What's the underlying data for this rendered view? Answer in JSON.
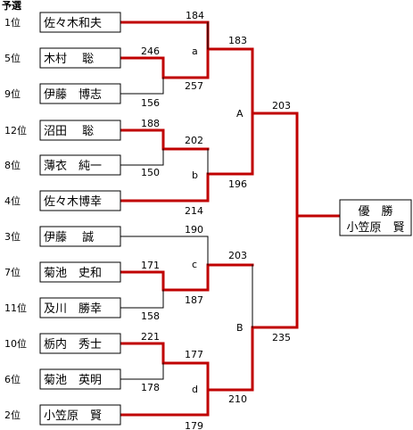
{
  "title": "予選",
  "colors": {
    "winner": "#c00000",
    "loser": "#000000"
  },
  "players": [
    {
      "seed": "1位",
      "name": "佐々木和夫",
      "score": "184"
    },
    {
      "seed": "5位",
      "name": "木村　 聡",
      "score": "246"
    },
    {
      "seed": "9位",
      "name": "伊藤　博志",
      "score": "156"
    },
    {
      "seed": "12位",
      "name": "沼田　 聡",
      "score": "188"
    },
    {
      "seed": "8位",
      "name": "薄衣　純一",
      "score": "150"
    },
    {
      "seed": "4位",
      "name": "佐々木博幸",
      "score": "214"
    },
    {
      "seed": "3位",
      "name": "伊藤　 誠",
      "score": "190"
    },
    {
      "seed": "7位",
      "name": "菊池　史和",
      "score": "171"
    },
    {
      "seed": "11位",
      "name": "及川　勝幸",
      "score": "158"
    },
    {
      "seed": "10位",
      "name": "栃内　秀士",
      "score": "221"
    },
    {
      "seed": "6位",
      "name": "菊池　英明",
      "score": "178"
    },
    {
      "seed": "2位",
      "name": "小笠原　賢",
      "score": "179"
    }
  ],
  "prelim_scores": [
    "257",
    "202",
    "187",
    "177"
  ],
  "group_labels": [
    "a",
    "b",
    "c",
    "d"
  ],
  "group_scores": [
    "183",
    "196",
    "203",
    "210"
  ],
  "semi_labels": [
    "A",
    "B"
  ],
  "semi_scores": [
    "203",
    "235"
  ],
  "champion": {
    "title": "優　勝",
    "name": "小笠原　賢"
  }
}
